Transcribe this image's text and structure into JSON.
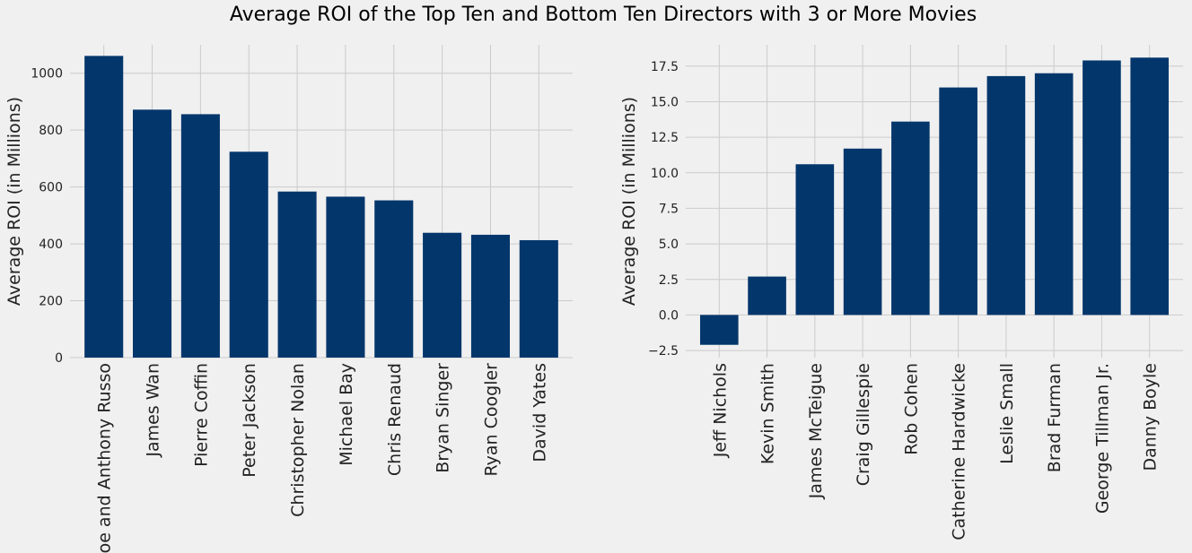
{
  "title": "Average ROI of the Top Ten and Bottom Ten Directors with 3 or More Movies",
  "colors": {
    "background": "#f0f0f0",
    "bar": "#03366b",
    "grid": "#cbcbcb"
  },
  "chart_data": [
    {
      "type": "bar",
      "categories": [
        "Joe and Anthony Russo",
        "James Wan",
        "Pierre Coffin",
        "Peter Jackson",
        "Christopher Nolan",
        "Michael Bay",
        "Chris Renaud",
        "Bryan Singer",
        "Ryan Coogler",
        "David Yates"
      ],
      "values": [
        1061,
        872,
        856,
        724,
        584,
        566,
        553,
        439,
        432,
        413
      ],
      "ylabel": "Average ROI (in Millions)",
      "ylim": [
        0,
        1100
      ],
      "yticks": [
        0,
        200,
        400,
        600,
        800,
        1000
      ],
      "ytick_labels": [
        "0",
        "200",
        "400",
        "600",
        "800",
        "1000"
      ],
      "grid": true
    },
    {
      "type": "bar",
      "categories": [
        "Jeff Nichols",
        "Kevin Smith",
        "James McTeigue",
        "Craig Gillespie",
        "Rob Cohen",
        "Catherine Hardwicke",
        "Leslie Small",
        "Brad Furman",
        "George Tillman Jr.",
        "Danny Boyle"
      ],
      "values": [
        -2.1,
        2.7,
        10.6,
        11.7,
        13.6,
        16.0,
        16.8,
        17.0,
        17.9,
        18.1
      ],
      "ylabel": "Average ROI (in Millions)",
      "ylim": [
        -3.0,
        19.0
      ],
      "yticks": [
        -2.5,
        0.0,
        2.5,
        5.0,
        7.5,
        10.0,
        12.5,
        15.0,
        17.5
      ],
      "ytick_labels": [
        "−2.5",
        "0.0",
        "2.5",
        "5.0",
        "7.5",
        "10.0",
        "12.5",
        "15.0",
        "17.5"
      ],
      "grid": true
    }
  ]
}
